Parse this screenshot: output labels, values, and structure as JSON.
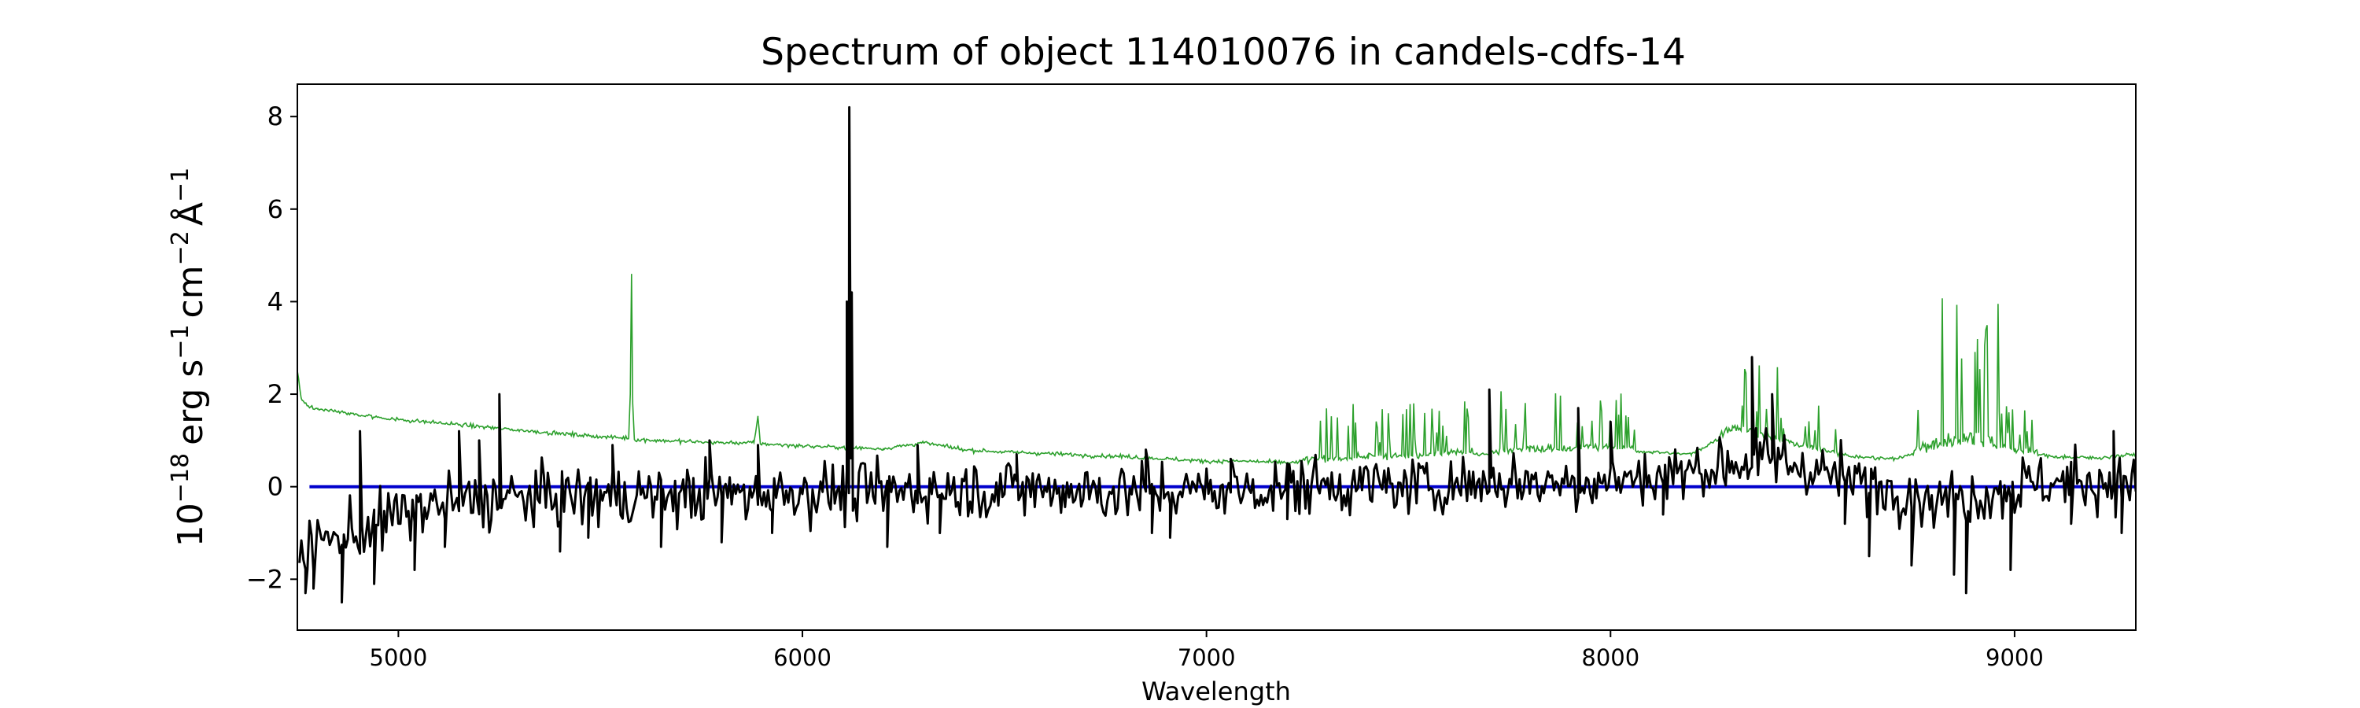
{
  "chart_data": {
    "type": "line",
    "title": "Spectrum of object 114010076 in candels-cdfs-14",
    "xlabel": "Wavelength",
    "ylabel": {
      "base": "10",
      "base_exp": "−18",
      "erg": "erg s",
      "s_exp": "−1",
      "cm": "cm",
      "cm_exp": "−2",
      "angstrom": "Å",
      "a_exp": "−1"
    },
    "xlim": [
      4750,
      9300
    ],
    "ylim": [
      -3.1,
      8.7
    ],
    "xticks": [
      5000,
      6000,
      7000,
      8000,
      9000
    ],
    "yticks": [
      -2,
      0,
      2,
      4,
      6,
      8
    ],
    "tick_labels": {
      "x": [
        "5000",
        "6000",
        "7000",
        "8000",
        "9000"
      ],
      "y": [
        "−2",
        "0",
        "2",
        "4",
        "6",
        "8"
      ]
    },
    "grid": false,
    "legend": "none",
    "series": [
      {
        "role": "noise",
        "color": "#2ca02c",
        "points": [
          [
            4750,
            2.5
          ],
          [
            4760,
            1.9
          ],
          [
            4775,
            1.75
          ],
          [
            4800,
            1.68
          ],
          [
            4850,
            1.62
          ],
          [
            4900,
            1.55
          ],
          [
            5000,
            1.45
          ],
          [
            5100,
            1.38
          ],
          [
            5200,
            1.3
          ],
          [
            5300,
            1.22
          ],
          [
            5400,
            1.15
          ],
          [
            5500,
            1.08
          ],
          [
            5570,
            1.05
          ],
          [
            5574,
            2.0
          ],
          [
            5577,
            4.6
          ],
          [
            5580,
            1.8
          ],
          [
            5584,
            1.02
          ],
          [
            5700,
            0.98
          ],
          [
            5800,
            0.95
          ],
          [
            5880,
            0.95
          ],
          [
            5890,
            1.5
          ],
          [
            5896,
            0.93
          ],
          [
            6000,
            0.88
          ],
          [
            6100,
            0.85
          ],
          [
            6200,
            0.82
          ],
          [
            6300,
            0.95
          ],
          [
            6400,
            0.8
          ],
          [
            6500,
            0.75
          ],
          [
            6600,
            0.72
          ],
          [
            6700,
            0.68
          ],
          [
            6800,
            0.65
          ],
          [
            6900,
            0.6
          ],
          [
            7000,
            0.55
          ],
          [
            7100,
            0.55
          ],
          [
            7200,
            0.52
          ],
          [
            7300,
            0.55
          ],
          [
            7400,
            0.6
          ],
          [
            7500,
            0.62
          ],
          [
            7600,
            0.7
          ],
          [
            7700,
            0.7
          ],
          [
            7800,
            0.75
          ],
          [
            7900,
            0.78
          ],
          [
            8000,
            0.8
          ],
          [
            8100,
            0.75
          ],
          [
            8200,
            0.7
          ],
          [
            8300,
            1.2
          ],
          [
            8400,
            1.0
          ],
          [
            8500,
            0.8
          ],
          [
            8600,
            0.65
          ],
          [
            8700,
            0.6
          ],
          [
            8800,
            0.8
          ],
          [
            8900,
            0.9
          ],
          [
            9000,
            0.75
          ],
          [
            9100,
            0.65
          ],
          [
            9200,
            0.62
          ],
          [
            9300,
            0.7
          ]
        ],
        "bursts": [
          {
            "x0": 7240,
            "x1": 7660,
            "amp": 0.9
          },
          {
            "x0": 7700,
            "x1": 8060,
            "amp": 1.1
          },
          {
            "x0": 8270,
            "x1": 8420,
            "amp": 1.3
          },
          {
            "x0": 8420,
            "x1": 8560,
            "amp": 0.8
          },
          {
            "x0": 8750,
            "x1": 8800,
            "amp": 1.8
          },
          {
            "x0": 8800,
            "x1": 8960,
            "amp": 2.6
          },
          {
            "x0": 8960,
            "x1": 9060,
            "amp": 0.9
          }
        ]
      },
      {
        "role": "flux",
        "color": "#000000",
        "baseline": [
          [
            4750,
            -1.6
          ],
          [
            4800,
            -1.2
          ],
          [
            4900,
            -1.0
          ],
          [
            5000,
            -0.6
          ],
          [
            5100,
            -0.4
          ],
          [
            5200,
            -0.3
          ],
          [
            5400,
            -0.2
          ],
          [
            5600,
            -0.2
          ],
          [
            5800,
            -0.15
          ],
          [
            6000,
            -0.1
          ],
          [
            6200,
            -0.1
          ],
          [
            6400,
            -0.05
          ],
          [
            6600,
            -0.05
          ],
          [
            6800,
            -0.1
          ],
          [
            6900,
            -0.1
          ],
          [
            7100,
            -0.05
          ],
          [
            7300,
            0.05
          ],
          [
            7500,
            0.0
          ],
          [
            7700,
            0.1
          ],
          [
            7900,
            0.1
          ],
          [
            8100,
            0.2
          ],
          [
            8300,
            0.5
          ],
          [
            8400,
            0.6
          ],
          [
            8500,
            0.4
          ],
          [
            8600,
            0.1
          ],
          [
            8700,
            0.0
          ],
          [
            8800,
            -0.3
          ],
          [
            8900,
            -0.2
          ],
          [
            9000,
            0.0
          ],
          [
            9100,
            0.1
          ],
          [
            9300,
            0.1
          ]
        ],
        "features": [
          [
            4770,
            -2.3
          ],
          [
            4790,
            -2.2
          ],
          [
            4860,
            -2.5
          ],
          [
            4905,
            1.2
          ],
          [
            4940,
            -2.1
          ],
          [
            5040,
            -1.8
          ],
          [
            5115,
            -1.3
          ],
          [
            5150,
            1.2
          ],
          [
            5200,
            1.0
          ],
          [
            5250,
            2.0
          ],
          [
            5400,
            -1.4
          ],
          [
            5470,
            -1.1
          ],
          [
            5530,
            0.9
          ],
          [
            5650,
            -1.3
          ],
          [
            5770,
            1.0
          ],
          [
            5800,
            -1.2
          ],
          [
            5890,
            0.9
          ],
          [
            5925,
            -1.0
          ],
          [
            6110,
            4.0
          ],
          [
            6116,
            8.2
          ],
          [
            6122,
            4.2
          ],
          [
            6210,
            -1.3
          ],
          [
            6285,
            0.9
          ],
          [
            6340,
            -1.0
          ],
          [
            6530,
            0.7
          ],
          [
            6850,
            0.8
          ],
          [
            6865,
            -1.0
          ],
          [
            6910,
            -1.1
          ],
          [
            7060,
            0.6
          ],
          [
            7200,
            -0.7
          ],
          [
            7700,
            2.1
          ],
          [
            7920,
            1.7
          ],
          [
            8000,
            1.4
          ],
          [
            8130,
            -0.6
          ],
          [
            8350,
            2.8
          ],
          [
            8400,
            2.0
          ],
          [
            8580,
            -0.8
          ],
          [
            8640,
            -1.5
          ],
          [
            8745,
            -1.7
          ],
          [
            8850,
            -1.9
          ],
          [
            8880,
            -2.3
          ],
          [
            8990,
            -1.8
          ],
          [
            9140,
            -0.8
          ],
          [
            9245,
            1.2
          ],
          [
            9265,
            -1.0
          ]
        ],
        "noise_sigma": 0.45
      },
      {
        "role": "continuum",
        "color": "#0000cc",
        "points": [
          [
            4780,
            0.0
          ],
          [
            9300,
            0.0
          ]
        ]
      }
    ]
  }
}
